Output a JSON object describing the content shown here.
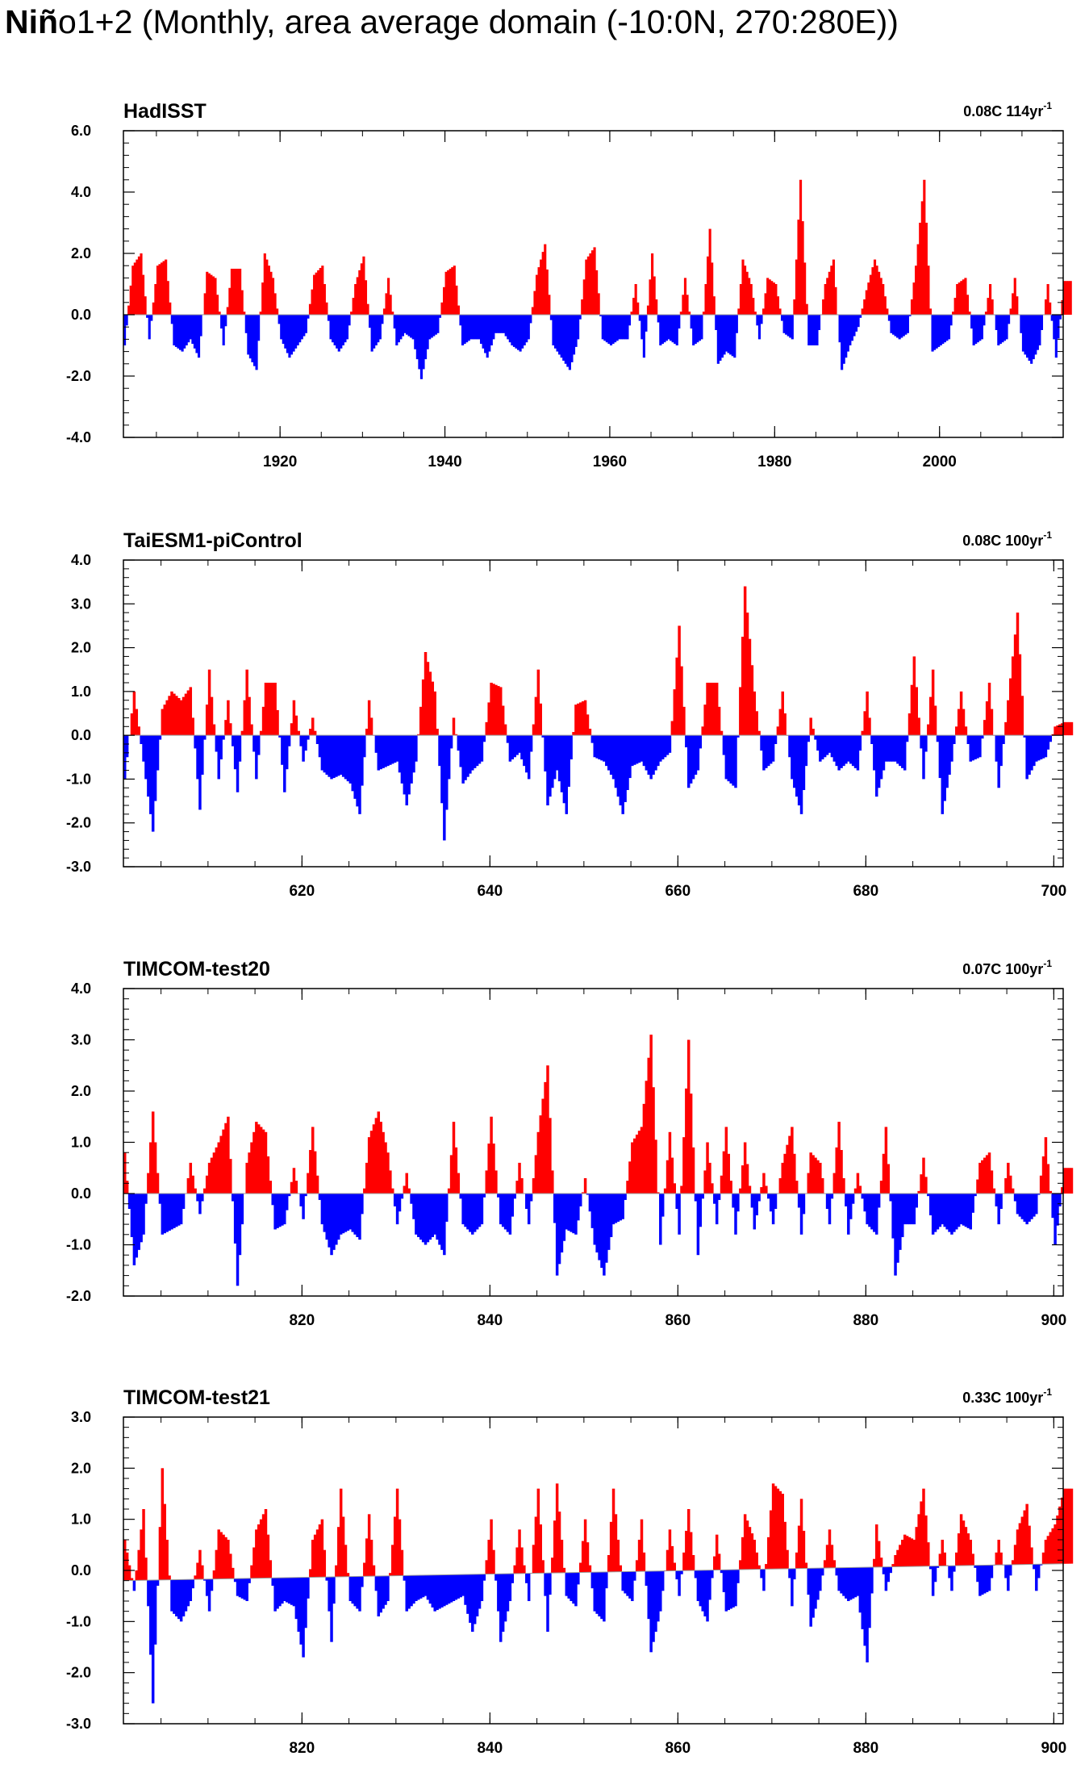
{
  "title": {
    "bold": "Niñ",
    "rest": "o1+2 (Monthly, area average domain (-10:0N, 270:280E))"
  },
  "colors": {
    "positive": "#ff0000",
    "negative": "#0000ff",
    "axis": "#000000"
  },
  "chart_data": [
    {
      "type": "area",
      "title": "HadISST",
      "trend_text": "0.08C 114yr",
      "trend_sup": "-1",
      "x_range": [
        1901,
        2015
      ],
      "ylim": [
        -4,
        6
      ],
      "yticks": [
        "6.0",
        "4.0",
        "2.0",
        "0.0",
        "-2.0",
        "-4.0"
      ],
      "xticks": [
        "1920",
        "1940",
        "1960",
        "1980",
        "2000"
      ],
      "positive_color": "#ff0000",
      "negative_color": "#0000ff",
      "x": [
        1901,
        1902,
        1903,
        1904,
        1905,
        1906,
        1907,
        1908,
        1909,
        1910,
        1911,
        1912,
        1913,
        1914,
        1915,
        1916,
        1917,
        1918,
        1919,
        1920,
        1921,
        1922,
        1923,
        1924,
        1925,
        1926,
        1927,
        1928,
        1929,
        1930,
        1931,
        1932,
        1933,
        1934,
        1935,
        1936,
        1937,
        1938,
        1939,
        1940,
        1941,
        1942,
        1943,
        1944,
        1945,
        1946,
        1947,
        1948,
        1949,
        1950,
        1951,
        1952,
        1953,
        1954,
        1955,
        1956,
        1957,
        1958,
        1959,
        1960,
        1961,
        1962,
        1963,
        1964,
        1965,
        1966,
        1967,
        1968,
        1969,
        1970,
        1971,
        1972,
        1973,
        1974,
        1975,
        1976,
        1977,
        1978,
        1979,
        1980,
        1981,
        1982,
        1983,
        1984,
        1985,
        1986,
        1987,
        1988,
        1989,
        1990,
        1991,
        1992,
        1993,
        1994,
        1995,
        1996,
        1997,
        1998,
        1999,
        2000,
        2001,
        2002,
        2003,
        2004,
        2005,
        2006,
        2007,
        2008,
        2009,
        2010,
        2011,
        2012,
        2013,
        2014,
        2015
      ],
      "y": [
        -1.0,
        1.6,
        2.0,
        -0.8,
        1.6,
        1.8,
        -1.0,
        -1.2,
        -0.8,
        -1.4,
        1.4,
        1.2,
        -1.0,
        1.5,
        1.5,
        -1.3,
        -1.8,
        2.0,
        1.2,
        -0.8,
        -1.4,
        -1.0,
        -0.6,
        1.3,
        1.6,
        -0.8,
        -1.2,
        -0.8,
        1.0,
        1.9,
        -1.2,
        -0.8,
        1.2,
        -1.0,
        -0.6,
        -0.8,
        -2.1,
        -0.8,
        -0.6,
        1.4,
        1.6,
        -1.0,
        -0.8,
        -0.8,
        -1.4,
        -0.6,
        -0.6,
        -1.0,
        -1.2,
        -0.8,
        1.3,
        2.3,
        -1.0,
        -1.4,
        -1.8,
        -0.8,
        1.8,
        2.2,
        -0.8,
        -1.0,
        -0.8,
        -0.8,
        1.0,
        -1.4,
        2.0,
        -1.0,
        -0.8,
        -1.0,
        1.2,
        -1.0,
        -0.8,
        2.8,
        -1.6,
        -1.2,
        -1.4,
        1.8,
        1.0,
        -0.8,
        1.2,
        1.0,
        -0.6,
        -0.8,
        4.4,
        -1.0,
        -1.0,
        1.0,
        1.8,
        -1.8,
        -1.0,
        -0.4,
        0.8,
        1.8,
        1.0,
        -0.6,
        -0.8,
        -0.6,
        1.6,
        4.4,
        -1.2,
        -1.0,
        -0.8,
        1.0,
        1.2,
        -1.0,
        -0.8,
        1.0,
        -1.0,
        -0.8,
        1.2,
        -1.2,
        -1.6,
        -1.0,
        1.0,
        -1.4,
        1.1
      ]
    },
    {
      "type": "area",
      "title": "TaiESM1-piControl",
      "trend_text": "0.08C 100yr",
      "trend_sup": "-1",
      "x_range": [
        601,
        701
      ],
      "ylim": [
        -3,
        4
      ],
      "yticks": [
        "4.0",
        "3.0",
        "2.0",
        "1.0",
        "0.0",
        "-1.0",
        "-2.0",
        "-3.0"
      ],
      "xticks": [
        "620",
        "640",
        "660",
        "680",
        "700"
      ],
      "positive_color": "#ff0000",
      "negative_color": "#0000ff",
      "x": [
        601,
        602,
        603,
        604,
        605,
        606,
        607,
        608,
        609,
        610,
        611,
        612,
        613,
        614,
        615,
        616,
        617,
        618,
        619,
        620,
        621,
        622,
        623,
        624,
        625,
        626,
        627,
        628,
        629,
        630,
        631,
        632,
        633,
        634,
        635,
        636,
        637,
        638,
        639,
        640,
        641,
        642,
        643,
        644,
        645,
        646,
        647,
        648,
        649,
        650,
        651,
        652,
        653,
        654,
        655,
        656,
        657,
        658,
        659,
        660,
        661,
        662,
        663,
        664,
        665,
        666,
        667,
        668,
        669,
        670,
        671,
        672,
        673,
        674,
        675,
        676,
        677,
        678,
        679,
        680,
        681,
        682,
        683,
        684,
        685,
        686,
        687,
        688,
        689,
        690,
        691,
        692,
        693,
        694,
        695,
        696,
        697,
        698,
        699,
        700,
        701
      ],
      "y": [
        -1.0,
        1.0,
        -0.6,
        -2.2,
        0.6,
        1.0,
        0.8,
        1.1,
        -1.7,
        1.5,
        -1.0,
        0.8,
        -1.3,
        1.5,
        -1.0,
        1.2,
        1.2,
        -1.3,
        0.8,
        -0.6,
        0.4,
        -0.8,
        -1.0,
        -0.9,
        -1.1,
        -1.8,
        0.8,
        -0.8,
        -0.7,
        -0.6,
        -1.6,
        -0.6,
        1.9,
        1.0,
        -2.4,
        0.4,
        -1.1,
        -0.8,
        -0.6,
        1.2,
        1.1,
        -0.6,
        -0.4,
        -1.0,
        1.5,
        -1.6,
        -0.8,
        -1.8,
        0.7,
        0.8,
        -0.5,
        -0.6,
        -1.0,
        -1.8,
        -0.7,
        -0.6,
        -1.0,
        -0.6,
        -0.4,
        2.5,
        -1.2,
        -0.8,
        1.2,
        1.2,
        -1.0,
        -1.2,
        3.4,
        1.0,
        -0.8,
        -0.6,
        1.0,
        -1.0,
        -1.8,
        0.4,
        -0.6,
        -0.4,
        -0.8,
        -0.6,
        -0.8,
        1.0,
        -1.4,
        -0.6,
        -0.6,
        -0.8,
        1.8,
        -1.0,
        1.5,
        -1.8,
        -0.6,
        1.0,
        -0.6,
        -0.5,
        1.2,
        -1.2,
        0.8,
        2.8,
        -1.0,
        -0.6,
        -0.5,
        0.2,
        0.3
      ]
    },
    {
      "type": "area",
      "title": "TIMCOM-test20",
      "trend_text": "0.07C 100yr",
      "trend_sup": "-1",
      "x_range": [
        801,
        901
      ],
      "ylim": [
        -2,
        4
      ],
      "yticks": [
        "4.0",
        "3.0",
        "2.0",
        "1.0",
        "0.0",
        "-1.0",
        "-2.0"
      ],
      "xticks": [
        "820",
        "840",
        "860",
        "880",
        "900"
      ],
      "positive_color": "#ff0000",
      "negative_color": "#0000ff",
      "x": [
        801,
        802,
        803,
        804,
        805,
        806,
        807,
        808,
        809,
        810,
        811,
        812,
        813,
        814,
        815,
        816,
        817,
        818,
        819,
        820,
        821,
        822,
        823,
        824,
        825,
        826,
        827,
        828,
        829,
        830,
        831,
        832,
        833,
        834,
        835,
        836,
        837,
        838,
        839,
        840,
        841,
        842,
        843,
        844,
        845,
        846,
        847,
        848,
        849,
        850,
        851,
        852,
        853,
        854,
        855,
        856,
        857,
        858,
        859,
        860,
        861,
        862,
        863,
        864,
        865,
        866,
        867,
        868,
        869,
        870,
        871,
        872,
        873,
        874,
        875,
        876,
        877,
        878,
        879,
        880,
        881,
        882,
        883,
        884,
        885,
        886,
        887,
        888,
        889,
        890,
        891,
        892,
        893,
        894,
        895,
        896,
        897,
        898,
        899,
        900,
        901
      ],
      "y": [
        0.8,
        -1.4,
        -0.8,
        1.6,
        -0.8,
        -0.7,
        -0.6,
        0.6,
        -0.4,
        0.6,
        1.0,
        1.5,
        -1.8,
        0.6,
        1.4,
        1.2,
        -0.7,
        -0.6,
        0.5,
        -0.5,
        1.3,
        -0.6,
        -1.2,
        -0.8,
        -0.7,
        -0.9,
        1.1,
        1.6,
        0.8,
        -0.6,
        0.4,
        -0.8,
        -1.0,
        -0.8,
        -1.2,
        1.4,
        -0.6,
        -0.8,
        -0.6,
        1.5,
        -0.6,
        -0.8,
        0.6,
        -0.6,
        1.2,
        2.5,
        -1.6,
        -0.7,
        -0.8,
        0.3,
        -1.0,
        -1.6,
        -0.6,
        -0.5,
        1.0,
        1.3,
        3.1,
        -1.0,
        1.2,
        -0.8,
        3.0,
        -1.2,
        1.0,
        -0.6,
        1.3,
        -0.8,
        1.0,
        -0.7,
        0.4,
        -0.6,
        0.6,
        1.3,
        -0.8,
        0.8,
        0.6,
        -0.6,
        1.4,
        -0.8,
        0.4,
        -0.6,
        -0.8,
        1.3,
        -1.6,
        -0.6,
        -0.6,
        0.7,
        -0.8,
        -0.6,
        -0.8,
        -0.6,
        -0.7,
        0.6,
        0.8,
        -0.6,
        0.6,
        -0.4,
        -0.6,
        -0.4,
        1.1,
        -1.0,
        0.5
      ]
    },
    {
      "type": "area",
      "title": "TIMCOM-test21",
      "trend_text": "0.33C 100yr",
      "trend_sup": "-1",
      "x_range": [
        801,
        901
      ],
      "ylim": [
        -3,
        3
      ],
      "yticks": [
        "3.0",
        "2.0",
        "1.0",
        "0.0",
        "-1.0",
        "-2.0",
        "-3.0"
      ],
      "xticks": [
        "820",
        "840",
        "860",
        "880",
        "900"
      ],
      "positive_color": "#ff0000",
      "negative_color": "#0000ff",
      "trend_line": [
        -0.2,
        0.13
      ],
      "x": [
        801,
        802,
        803,
        804,
        805,
        806,
        807,
        808,
        809,
        810,
        811,
        812,
        813,
        814,
        815,
        816,
        817,
        818,
        819,
        820,
        821,
        822,
        823,
        824,
        825,
        826,
        827,
        828,
        829,
        830,
        831,
        832,
        833,
        834,
        835,
        836,
        837,
        838,
        839,
        840,
        841,
        842,
        843,
        844,
        845,
        846,
        847,
        848,
        849,
        850,
        851,
        852,
        853,
        854,
        855,
        856,
        857,
        858,
        859,
        860,
        861,
        862,
        863,
        864,
        865,
        866,
        867,
        868,
        869,
        870,
        871,
        872,
        873,
        874,
        875,
        876,
        877,
        878,
        879,
        880,
        881,
        882,
        883,
        884,
        885,
        886,
        887,
        888,
        889,
        890,
        891,
        892,
        893,
        894,
        895,
        896,
        897,
        898,
        899,
        900,
        901
      ],
      "y": [
        0.6,
        -0.4,
        1.2,
        -2.6,
        2.0,
        -0.8,
        -1.0,
        -0.6,
        0.4,
        -0.8,
        0.8,
        0.6,
        -0.5,
        -0.6,
        0.8,
        1.2,
        -0.8,
        -0.6,
        -0.7,
        -1.7,
        0.6,
        1.0,
        -1.4,
        1.6,
        -0.6,
        -0.8,
        1.1,
        -0.9,
        -0.6,
        1.6,
        -0.8,
        -0.6,
        -0.5,
        -0.8,
        -0.7,
        -0.6,
        -0.5,
        -1.2,
        -0.6,
        1.0,
        -1.4,
        -0.6,
        0.8,
        -0.6,
        1.6,
        -1.2,
        1.7,
        -0.5,
        -0.7,
        1.0,
        -0.8,
        -1.0,
        1.6,
        -0.4,
        -0.6,
        1.0,
        -1.6,
        -0.8,
        0.8,
        -0.5,
        1.2,
        -0.6,
        -1.0,
        0.7,
        -0.8,
        -0.7,
        1.1,
        0.6,
        -0.4,
        1.7,
        1.5,
        -0.7,
        1.4,
        -1.1,
        -0.4,
        0.8,
        -0.4,
        -0.6,
        -0.5,
        -1.8,
        0.9,
        -0.4,
        0.3,
        0.7,
        0.6,
        1.6,
        -0.5,
        0.6,
        -0.4,
        1.1,
        0.6,
        -0.5,
        -0.4,
        0.6,
        -0.4,
        0.8,
        1.3,
        -0.4,
        0.6,
        0.9,
        1.6
      ]
    }
  ]
}
